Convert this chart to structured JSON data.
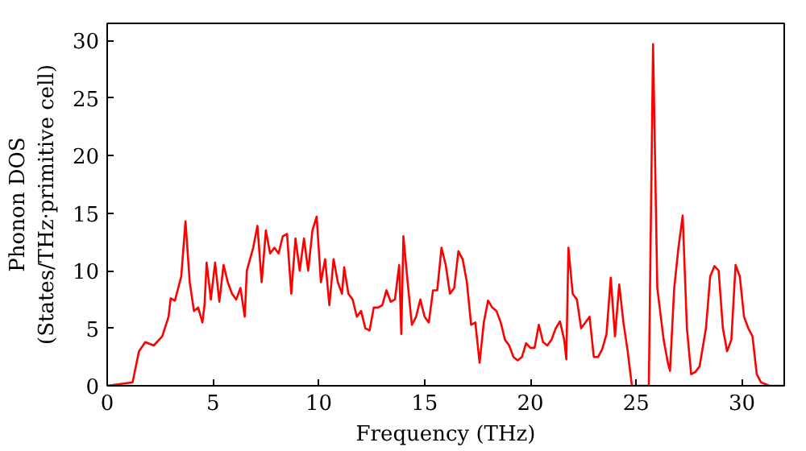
{
  "chart_data": {
    "type": "line",
    "xlabel": "Frequency (THz)",
    "ylabel": "Phonon DOS\n(States/THz·primitive cell)",
    "xlim": [
      0,
      32
    ],
    "ylim": [
      0,
      31.5
    ],
    "xticks": [
      0,
      5,
      10,
      15,
      20,
      25,
      30
    ],
    "yticks": [
      0,
      5,
      10,
      15,
      20,
      25,
      30
    ],
    "grid": false,
    "series": [
      {
        "color": "#ff0000",
        "x": [
          0,
          1.2,
          1.5,
          1.8,
          2.2,
          2.6,
          2.9,
          3.0,
          3.2,
          3.5,
          3.7,
          3.9,
          4.1,
          4.3,
          4.5,
          4.6,
          4.7,
          4.9,
          5.1,
          5.3,
          5.5,
          5.7,
          5.9,
          6.1,
          6.3,
          6.5,
          6.6,
          6.9,
          7.1,
          7.3,
          7.5,
          7.7,
          7.9,
          8.1,
          8.3,
          8.5,
          8.7,
          8.9,
          9.1,
          9.3,
          9.5,
          9.7,
          9.9,
          10.1,
          10.3,
          10.5,
          10.7,
          10.9,
          11.1,
          11.2,
          11.4,
          11.6,
          11.8,
          12.0,
          12.2,
          12.4,
          12.6,
          12.8,
          13.0,
          13.2,
          13.4,
          13.6,
          13.8,
          13.9,
          14.0,
          14.2,
          14.4,
          14.6,
          14.8,
          15.0,
          15.2,
          15.4,
          15.6,
          15.8,
          16.0,
          16.2,
          16.4,
          16.6,
          16.8,
          17.0,
          17.2,
          17.4,
          17.6,
          17.8,
          18.0,
          18.2,
          18.4,
          18.6,
          18.8,
          19.0,
          19.2,
          19.4,
          19.6,
          19.8,
          20.0,
          20.2,
          20.4,
          20.6,
          20.8,
          21.0,
          21.2,
          21.4,
          21.6,
          21.7,
          21.8,
          22.0,
          22.2,
          22.4,
          22.6,
          22.8,
          23.0,
          23.2,
          23.4,
          23.6,
          23.8,
          24.0,
          24.2,
          24.4,
          24.6,
          24.8,
          25.6,
          25.8,
          26.0,
          26.3,
          26.5,
          26.6,
          26.8,
          27.0,
          27.2,
          27.4,
          27.6,
          27.8,
          28.0,
          28.3,
          28.5,
          28.7,
          28.9,
          29.1,
          29.3,
          29.5,
          29.7,
          29.9,
          30.1,
          30.3,
          30.5,
          30.7,
          30.9,
          31.3,
          32
        ],
        "values": [
          0,
          0.3,
          3,
          3.8,
          3.5,
          4.3,
          6,
          7.6,
          7.4,
          9.5,
          14.3,
          9,
          6.5,
          6.8,
          5.5,
          7,
          10.7,
          7.5,
          10.7,
          7.3,
          10.5,
          9,
          8,
          7.5,
          8.5,
          6,
          10,
          12,
          13.9,
          9,
          13.5,
          11.5,
          12,
          11.5,
          13,
          13.2,
          8,
          12.8,
          10,
          12.8,
          10,
          13.5,
          14.7,
          9,
          11,
          7,
          11,
          9,
          8,
          10.3,
          8,
          7.5,
          6,
          6.5,
          5,
          4.8,
          6.8,
          6.8,
          7,
          8.3,
          7.3,
          7.5,
          10.5,
          4.5,
          13,
          9,
          5.3,
          6,
          7.5,
          6,
          5.5,
          8.3,
          8.3,
          12,
          10.5,
          8,
          8.5,
          11.7,
          11,
          9,
          5.3,
          5.5,
          2,
          5.5,
          7.4,
          6.8,
          6.5,
          5.5,
          4,
          3.5,
          2.5,
          2.2,
          2.5,
          3.7,
          3.3,
          3.3,
          5.3,
          3.8,
          3.5,
          4,
          5,
          5.6,
          4,
          2.3,
          12,
          8,
          7.5,
          5,
          5.5,
          6,
          2.5,
          2.5,
          3.2,
          4.5,
          9.4,
          4.3,
          8.8,
          5.5,
          3,
          0,
          0,
          29.7,
          8.5,
          4,
          2,
          1.3,
          8.5,
          12,
          14.8,
          5,
          1,
          1.2,
          1.7,
          5,
          9.5,
          10.4,
          10,
          5,
          3,
          4,
          10.5,
          9.5,
          6,
          5,
          4.3,
          1,
          0.3,
          0,
          0
        ]
      }
    ]
  }
}
